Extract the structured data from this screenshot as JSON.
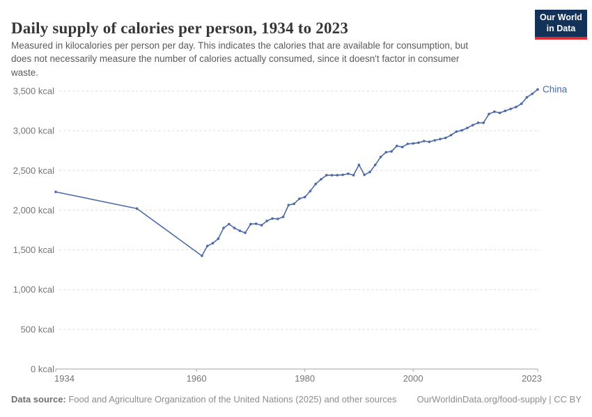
{
  "header": {
    "title": "Daily supply of calories per person, 1934 to 2023",
    "subtitle_lines": [
      "Measured in kilocalories per person per day. This indicates the calories that are available for consumption, but",
      "does not necessarily measure the number of calories actually consumed, since it doesn't factor in consumer",
      "waste."
    ],
    "logo": {
      "line1": "Our World",
      "line2": "in Data",
      "bg_color": "#12325a",
      "accent_color": "#dc2c34"
    }
  },
  "chart_data": {
    "type": "line",
    "title": "Daily supply of calories per person, 1934 to 2023",
    "entity": "China",
    "xlabel": "",
    "ylabel": "",
    "y_unit": "kcal",
    "xlim": [
      1934,
      2023
    ],
    "ylim": [
      0,
      3500
    ],
    "x_ticks": [
      1934,
      1960,
      1980,
      2000,
      2023
    ],
    "y_ticks": [
      0,
      500,
      1000,
      1500,
      2000,
      2500,
      3000,
      3500
    ],
    "grid": "horizontal-dashed",
    "legend_position": "end-of-line-label",
    "series": [
      {
        "name": "China",
        "color": "#4a6aa5",
        "points": [
          [
            1934,
            2230
          ],
          [
            1949,
            2020
          ],
          [
            1961,
            1425
          ],
          [
            1962,
            1550
          ],
          [
            1963,
            1585
          ],
          [
            1964,
            1640
          ],
          [
            1965,
            1775
          ],
          [
            1966,
            1825
          ],
          [
            1967,
            1775
          ],
          [
            1968,
            1740
          ],
          [
            1969,
            1715
          ],
          [
            1970,
            1825
          ],
          [
            1971,
            1830
          ],
          [
            1972,
            1810
          ],
          [
            1973,
            1865
          ],
          [
            1974,
            1895
          ],
          [
            1975,
            1890
          ],
          [
            1976,
            1915
          ],
          [
            1977,
            2065
          ],
          [
            1978,
            2080
          ],
          [
            1979,
            2145
          ],
          [
            1980,
            2165
          ],
          [
            1981,
            2240
          ],
          [
            1982,
            2330
          ],
          [
            1983,
            2390
          ],
          [
            1984,
            2440
          ],
          [
            1985,
            2440
          ],
          [
            1986,
            2440
          ],
          [
            1987,
            2445
          ],
          [
            1988,
            2460
          ],
          [
            1989,
            2440
          ],
          [
            1990,
            2570
          ],
          [
            1991,
            2445
          ],
          [
            1992,
            2480
          ],
          [
            1993,
            2570
          ],
          [
            1994,
            2670
          ],
          [
            1995,
            2730
          ],
          [
            1996,
            2740
          ],
          [
            1997,
            2810
          ],
          [
            1998,
            2795
          ],
          [
            1999,
            2835
          ],
          [
            2000,
            2840
          ],
          [
            2001,
            2850
          ],
          [
            2002,
            2870
          ],
          [
            2003,
            2860
          ],
          [
            2004,
            2880
          ],
          [
            2005,
            2895
          ],
          [
            2006,
            2910
          ],
          [
            2007,
            2945
          ],
          [
            2008,
            2990
          ],
          [
            2009,
            3005
          ],
          [
            2010,
            3035
          ],
          [
            2011,
            3070
          ],
          [
            2012,
            3100
          ],
          [
            2013,
            3100
          ],
          [
            2014,
            3210
          ],
          [
            2015,
            3240
          ],
          [
            2016,
            3225
          ],
          [
            2017,
            3250
          ],
          [
            2018,
            3275
          ],
          [
            2019,
            3300
          ],
          [
            2020,
            3340
          ],
          [
            2021,
            3420
          ],
          [
            2022,
            3465
          ],
          [
            2023,
            3520
          ]
        ]
      }
    ]
  },
  "footer": {
    "source_label": "Data source:",
    "source_text": " Food and Agriculture Organization of the United Nations (2025) and other sources",
    "link_text": "OurWorldinData.org/food-supply | CC BY"
  }
}
